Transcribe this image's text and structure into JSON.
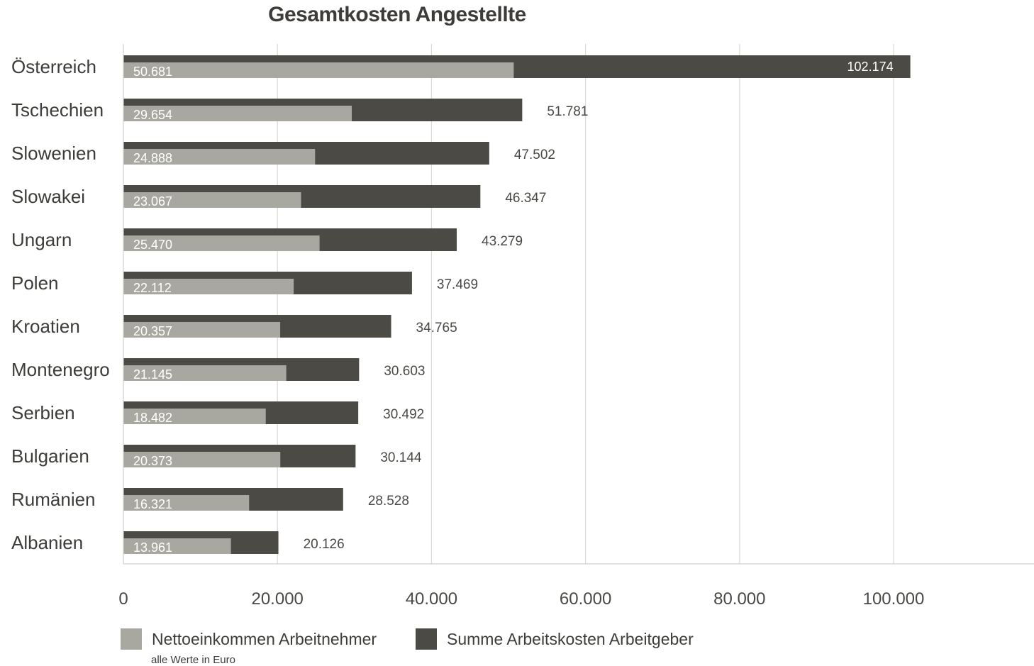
{
  "chart_data": {
    "type": "bar",
    "orientation": "horizontal",
    "title": "Gesamtkosten Angestellte",
    "categories": [
      "Österreich",
      "Tschechien",
      "Slowenien",
      "Slowakei",
      "Ungarn",
      "Polen",
      "Kroatien",
      "Montenegro",
      "Serbien",
      "Bulgarien",
      "Rumänien",
      "Albanien"
    ],
    "series": [
      {
        "name": "Nettoeinkommen Arbeitnehmer",
        "color": "#a9a8a0",
        "values": [
          50681,
          29654,
          24888,
          23067,
          25470,
          22112,
          20357,
          21145,
          18482,
          20373,
          16321,
          13961
        ],
        "labels": [
          "50.681",
          "29.654",
          "24.888",
          "23.067",
          "25.470",
          "22.112",
          "20.357",
          "21.145",
          "18.482",
          "20.373",
          "16.321",
          "13.961"
        ]
      },
      {
        "name": "Summe Arbeitskosten Arbeitgeber",
        "color": "#4b4a44",
        "values": [
          102174,
          51781,
          47502,
          46347,
          43279,
          37469,
          34765,
          30603,
          30492,
          30144,
          28528,
          20126
        ],
        "labels": [
          "102.174",
          "51.781",
          "47.502",
          "46.347",
          "43.279",
          "37.469",
          "34.765",
          "30.603",
          "30.492",
          "30.144",
          "28.528",
          "20.126"
        ]
      }
    ],
    "xlim": [
      0,
      118000
    ],
    "x_ticks": [
      0,
      20000,
      40000,
      60000,
      80000,
      100000
    ],
    "x_tick_labels": [
      "0",
      "20.000",
      "40.000",
      "60.000",
      "80.000",
      "100.000"
    ],
    "grid": true,
    "legend_position": "bottom-left",
    "footnote": "alle Werte in Euro"
  }
}
